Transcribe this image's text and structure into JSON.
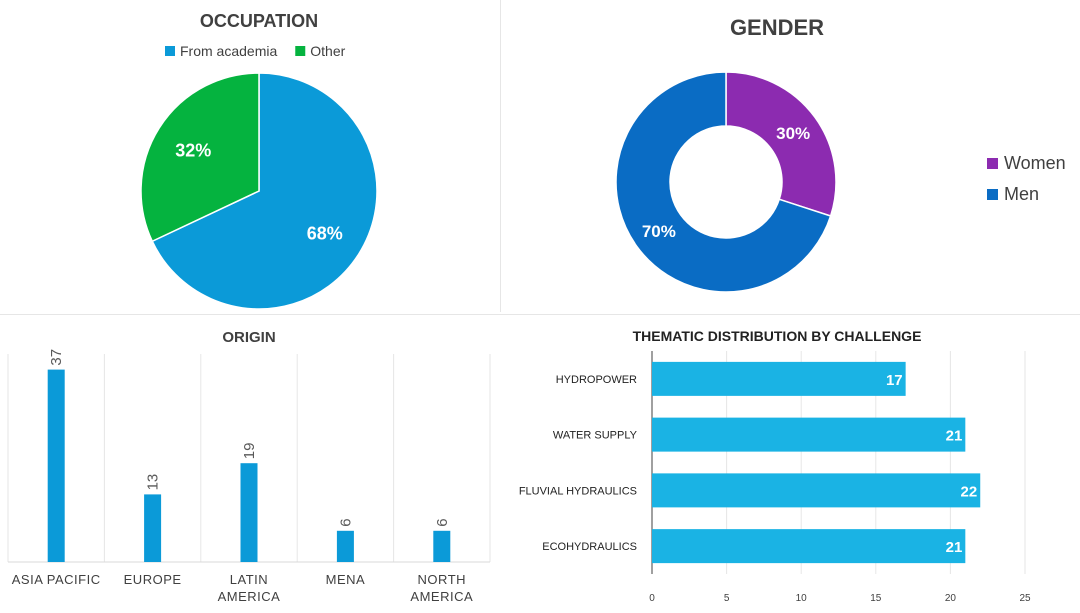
{
  "chart_data": [
    {
      "type": "pie",
      "title": "OCCUPATION",
      "legend_position": "top",
      "categories": [
        "From academia",
        "Other"
      ],
      "values": [
        68,
        32
      ],
      "labels": [
        "68%",
        "32%"
      ],
      "colors": [
        "#0b9ad8",
        "#05b33f"
      ]
    },
    {
      "type": "pie",
      "subtype": "donut",
      "title": "GENDER",
      "legend_position": "right",
      "categories": [
        "Women",
        "Men"
      ],
      "values": [
        30,
        70
      ],
      "labels": [
        "30%",
        "70%"
      ],
      "colors": [
        "#8c2bb0",
        "#0a6cc4"
      ]
    },
    {
      "type": "bar",
      "orientation": "vertical",
      "title": "ORIGIN",
      "categories": [
        "ASIA PACIFIC",
        "EUROPE",
        "LATIN AMERICA",
        "MENA",
        "NORTH AMERICA"
      ],
      "category_lines": [
        [
          "ASIA PACIFIC"
        ],
        [
          "EUROPE"
        ],
        [
          "LATIN",
          "AMERICA"
        ],
        [
          "MENA"
        ],
        [
          "NORTH",
          "AMERICA"
        ]
      ],
      "values": [
        37,
        13,
        19,
        6,
        6
      ],
      "ylim": [
        0,
        40
      ],
      "color": "#0b9ad8",
      "xlabel": "",
      "ylabel": ""
    },
    {
      "type": "bar",
      "orientation": "horizontal",
      "title": "THEMATIC DISTRIBUTION BY CHALLENGE",
      "categories": [
        "HYDROPOWER",
        "WATER SUPPLY",
        "FLUVIAL HYDRAULICS",
        "ECOHYDRAULICS"
      ],
      "values": [
        17,
        21,
        22,
        21
      ],
      "xlim": [
        0,
        25
      ],
      "xticks": [
        0,
        5,
        10,
        15,
        20,
        25
      ],
      "grid": true,
      "color": "#1ab3e4",
      "xlabel": "",
      "ylabel": ""
    }
  ]
}
